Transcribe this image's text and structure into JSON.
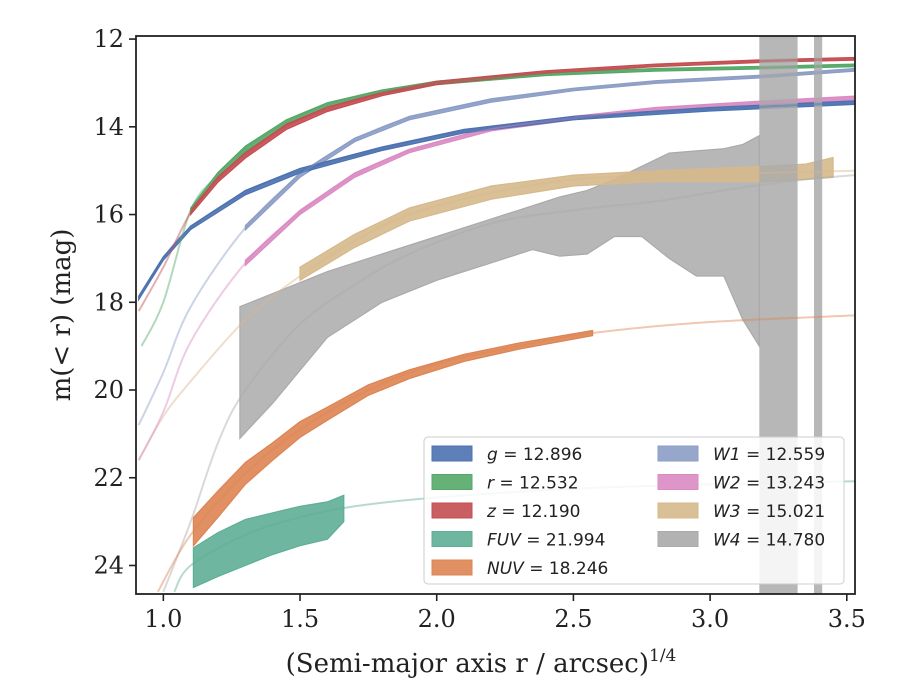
{
  "chart_data": {
    "type": "area",
    "xlabel": "(Semi-major axis r / arcsec)",
    "xlabel_superscript": "1/4",
    "ylabel": "m(< r) (mag)",
    "xlim": [
      0.9,
      3.53
    ],
    "ylim": [
      24.65,
      11.93
    ],
    "y_inverted": true,
    "xticks": [
      1.0,
      1.5,
      2.0,
      2.5,
      3.0,
      3.5
    ],
    "xtick_labels": [
      "1.0",
      "1.5",
      "2.0",
      "2.5",
      "3.0",
      "3.5"
    ],
    "yticks": [
      12,
      14,
      16,
      18,
      20,
      22,
      24
    ],
    "ytick_labels": [
      "12",
      "14",
      "16",
      "18",
      "20",
      "22",
      "24"
    ],
    "legend_position": "lower-right",
    "series": [
      {
        "name": "g",
        "label_value": "12.896",
        "color": "#4c72b0",
        "x": [
          0.91,
          1.0,
          1.1,
          1.3,
          1.5,
          1.8,
          2.1,
          2.5,
          3.0,
          3.53
        ],
        "y": [
          17.9,
          17.0,
          16.3,
          15.5,
          15.0,
          14.5,
          14.1,
          13.8,
          13.6,
          13.45
        ],
        "band_x": [
          0.91,
          1.0,
          1.1,
          1.3,
          1.5,
          1.8,
          2.1,
          2.5,
          3.0,
          3.53
        ],
        "band_halfwidth": [
          0.04,
          0.04,
          0.04,
          0.05,
          0.05,
          0.04,
          0.04,
          0.04,
          0.04,
          0.04
        ]
      },
      {
        "name": "r",
        "label_value": "12.532",
        "color": "#55a868",
        "x": [
          0.92,
          1.0,
          1.1,
          1.2,
          1.3,
          1.45,
          1.6,
          1.8,
          2.0,
          2.4,
          2.8,
          3.2,
          3.53
        ],
        "y": [
          19.0,
          18.0,
          15.9,
          15.1,
          14.5,
          13.9,
          13.5,
          13.2,
          13.0,
          12.8,
          12.7,
          12.65,
          12.6
        ],
        "band_x": [
          1.1,
          1.2,
          1.3,
          1.45,
          1.6,
          1.8,
          2.0,
          2.4,
          2.8,
          3.2,
          3.53
        ],
        "band_halfwidth": [
          0.05,
          0.06,
          0.06,
          0.06,
          0.05,
          0.04,
          0.04,
          0.03,
          0.03,
          0.03,
          0.03
        ]
      },
      {
        "name": "z",
        "label_value": "12.190",
        "color": "#c44e52",
        "x": [
          0.91,
          1.0,
          1.1,
          1.2,
          1.3,
          1.45,
          1.6,
          1.8,
          2.0,
          2.4,
          2.8,
          3.2,
          3.53
        ],
        "y": [
          18.2,
          17.2,
          15.95,
          15.2,
          14.65,
          14.0,
          13.6,
          13.25,
          13.0,
          12.75,
          12.6,
          12.5,
          12.45
        ],
        "band_x": [
          1.1,
          1.2,
          1.3,
          1.45,
          1.6,
          1.8,
          2.0,
          2.4,
          2.8,
          3.2,
          3.53
        ],
        "band_halfwidth": [
          0.05,
          0.06,
          0.06,
          0.06,
          0.05,
          0.04,
          0.04,
          0.03,
          0.03,
          0.03,
          0.03
        ]
      },
      {
        "name": "FUV",
        "label_value": "21.994",
        "color": "#5fae96",
        "x": [
          1.04,
          1.1,
          1.3,
          1.5,
          1.7,
          2.0,
          2.5,
          3.0,
          3.53
        ],
        "y": [
          24.6,
          24.0,
          23.3,
          22.9,
          22.65,
          22.45,
          22.25,
          22.15,
          22.08
        ],
        "band_x": [
          1.11,
          1.2,
          1.3,
          1.4,
          1.5,
          1.6,
          1.66
        ],
        "band_lo": [
          23.6,
          23.25,
          22.95,
          22.8,
          22.65,
          22.55,
          22.4
        ],
        "band_hi": [
          24.5,
          24.25,
          24.0,
          23.75,
          23.55,
          23.4,
          23.0
        ]
      },
      {
        "name": "NUV",
        "label_value": "18.246",
        "color": "#dd8452",
        "x": [
          0.98,
          1.1,
          1.3,
          1.5,
          1.75,
          2.0,
          2.3,
          2.57,
          3.0,
          3.53
        ],
        "y": [
          24.6,
          23.3,
          21.9,
          20.9,
          20.0,
          19.4,
          19.0,
          18.7,
          18.45,
          18.3
        ],
        "band_x": [
          1.11,
          1.2,
          1.3,
          1.4,
          1.5,
          1.6,
          1.75,
          1.9,
          2.1,
          2.3,
          2.57
        ],
        "band_halfwidth": [
          0.32,
          0.3,
          0.25,
          0.2,
          0.18,
          0.15,
          0.12,
          0.1,
          0.08,
          0.07,
          0.06
        ]
      },
      {
        "name": "W1",
        "label_value": "12.559",
        "color": "#8c9dc6",
        "x": [
          0.91,
          1.0,
          1.1,
          1.3,
          1.5,
          1.7,
          1.9,
          2.2,
          2.5,
          2.8,
          3.2,
          3.53
        ],
        "y": [
          20.8,
          19.6,
          18.1,
          16.3,
          15.1,
          14.3,
          13.8,
          13.4,
          13.15,
          12.98,
          12.85,
          12.7
        ],
        "band_x": [
          1.3,
          1.5,
          1.7,
          1.9,
          2.2,
          2.5,
          2.8,
          3.2,
          3.53
        ],
        "band_halfwidth": [
          0.05,
          0.05,
          0.04,
          0.04,
          0.04,
          0.03,
          0.03,
          0.03,
          0.03
        ]
      },
      {
        "name": "W2",
        "label_value": "13.243",
        "color": "#da8bc3",
        "x": [
          0.91,
          1.0,
          1.1,
          1.3,
          1.5,
          1.7,
          1.9,
          2.2,
          2.5,
          2.8,
          3.2,
          3.53
        ],
        "y": [
          21.6,
          20.5,
          18.9,
          17.1,
          15.95,
          15.1,
          14.55,
          14.05,
          13.8,
          13.6,
          13.45,
          13.35
        ],
        "band_x": [
          1.3,
          1.5,
          1.7,
          1.9,
          2.2,
          2.5,
          2.8,
          3.2,
          3.53
        ],
        "band_halfwidth": [
          0.06,
          0.05,
          0.05,
          0.04,
          0.04,
          0.04,
          0.04,
          0.04,
          0.05
        ]
      },
      {
        "name": "W3",
        "label_value": "15.021",
        "color": "#d6b98c",
        "x": [
          0.91,
          1.0,
          1.1,
          1.3,
          1.5,
          1.7,
          1.9,
          2.2,
          2.5,
          2.8,
          3.2,
          3.53
        ],
        "y": [
          21.6,
          20.6,
          19.8,
          18.4,
          17.4,
          16.6,
          16.0,
          15.5,
          15.2,
          15.1,
          15.05,
          15.0
        ],
        "band_x": [
          1.5,
          1.7,
          1.9,
          2.2,
          2.5,
          2.8,
          3.0,
          3.2,
          3.35,
          3.45
        ],
        "band_lo": [
          17.2,
          16.45,
          15.85,
          15.35,
          15.1,
          15.0,
          14.95,
          14.9,
          14.85,
          14.7
        ],
        "band_hi": [
          17.5,
          16.75,
          16.15,
          15.65,
          15.35,
          15.25,
          15.25,
          15.25,
          15.2,
          15.15
        ]
      },
      {
        "name": "W4",
        "label_value": "14.780",
        "color": "#aaaaaa",
        "x": [
          1.0,
          1.1,
          1.2,
          1.3,
          1.5,
          1.7,
          1.9,
          2.2,
          2.5,
          2.8,
          3.1,
          3.35,
          3.53
        ],
        "y": [
          24.6,
          23.0,
          21.2,
          20.0,
          18.5,
          17.6,
          16.9,
          16.2,
          15.9,
          15.7,
          15.4,
          15.2,
          15.1
        ],
        "band_x": [
          1.28,
          1.4,
          1.6,
          1.8,
          2.0,
          2.2,
          2.35,
          2.45,
          2.55,
          2.65,
          2.75,
          2.85,
          2.95,
          3.05,
          3.12,
          3.18
        ],
        "band_lo": [
          18.1,
          17.8,
          17.3,
          16.9,
          16.5,
          16.1,
          15.8,
          15.6,
          15.45,
          15.2,
          14.9,
          14.6,
          14.55,
          14.5,
          14.4,
          14.2
        ],
        "band_hi": [
          21.1,
          20.3,
          18.8,
          18.0,
          17.5,
          17.1,
          16.8,
          16.95,
          16.9,
          16.5,
          16.5,
          17.0,
          17.4,
          17.4,
          18.4,
          19.0
        ]
      }
    ]
  }
}
